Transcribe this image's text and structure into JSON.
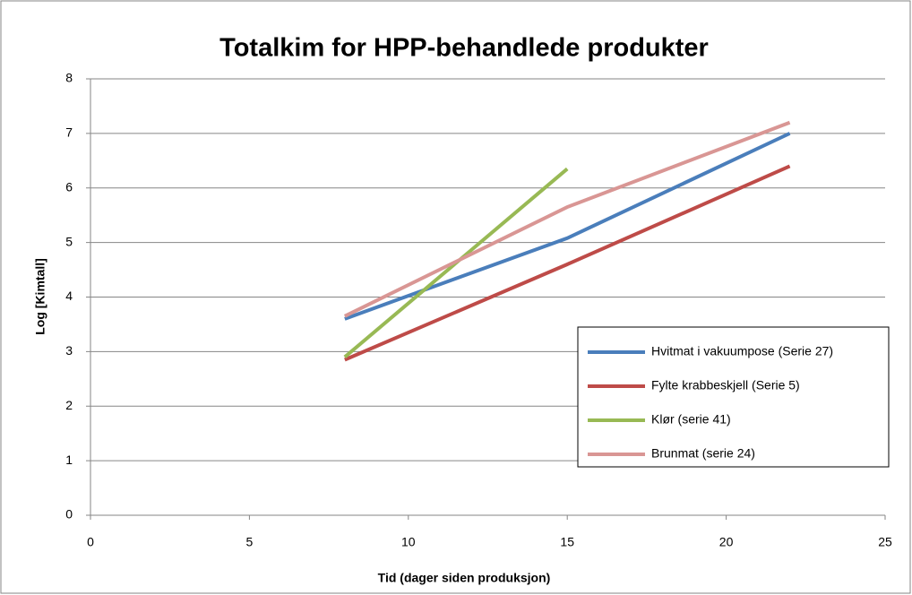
{
  "chart_data": {
    "type": "line",
    "title": "Totalkim for HPP-behandlede produkter",
    "x_label": "Tid (dager siden produksjon)",
    "y_label": "Log [Kimtall]",
    "x": [
      8,
      15,
      22
    ],
    "series": [
      {
        "name": "Hvitmat i vakuumpose (Serie 27)",
        "color": "#4a7ebb",
        "values": [
          3.6,
          5.08,
          7.0
        ]
      },
      {
        "name": "Fylte krabbeskjell (Serie 5)",
        "color": "#be4b48",
        "values": [
          2.85,
          4.6,
          6.4
        ]
      },
      {
        "name": "Klør (serie 41)",
        "color": "#98b954",
        "values": [
          2.9,
          6.35,
          null
        ]
      },
      {
        "name": "Brunmat (serie 24)",
        "color": "#d99694",
        "values": [
          3.65,
          5.65,
          7.2
        ]
      }
    ],
    "xlim": [
      0,
      25
    ],
    "xticks": [
      0,
      5,
      10,
      15,
      20,
      25
    ],
    "ylim": [
      0,
      8
    ],
    "yticks": [
      0,
      1,
      2,
      3,
      4,
      5,
      6,
      7,
      8
    ],
    "grid": true,
    "legend": "lower right"
  }
}
